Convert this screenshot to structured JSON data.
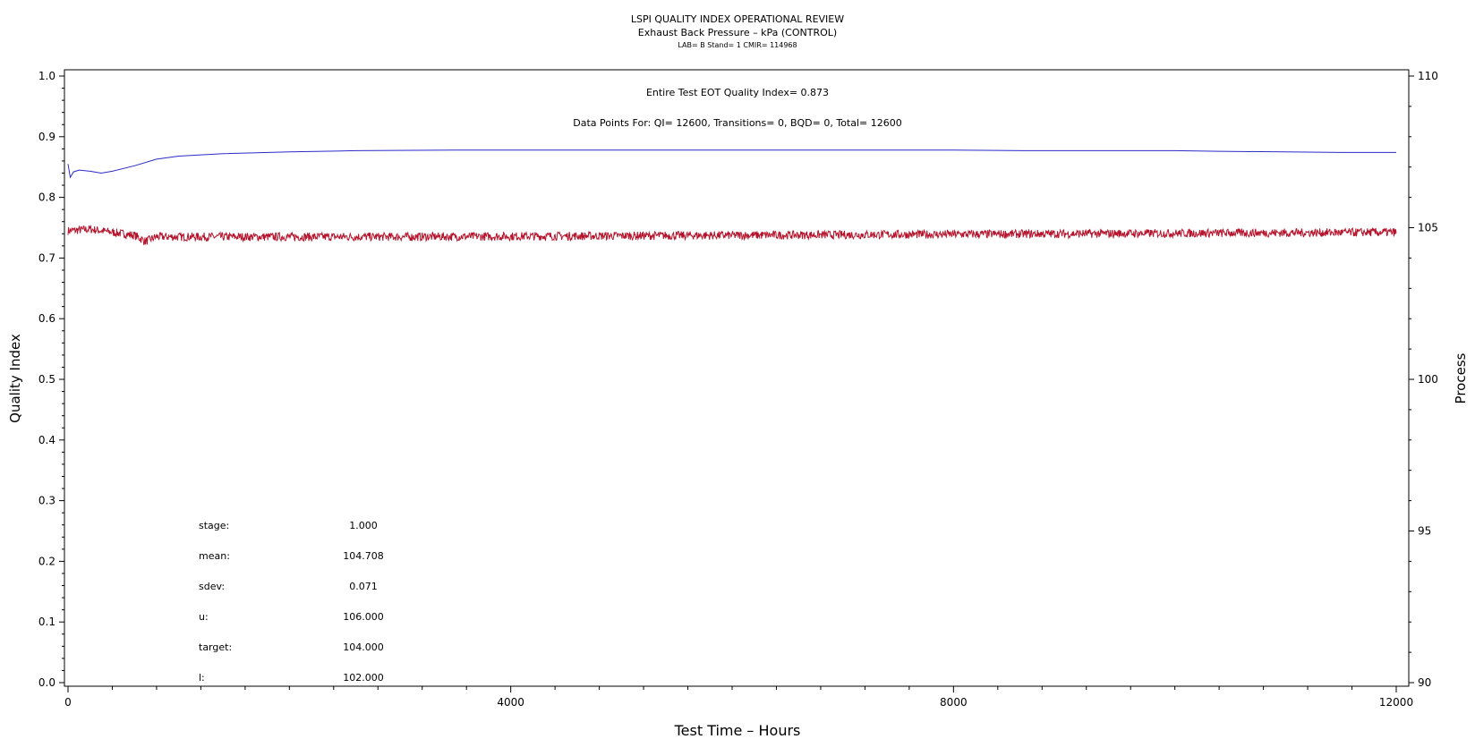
{
  "chart_data": {
    "type": "line",
    "title": "LSPI QUALITY INDEX OPERATIONAL REVIEW",
    "subtitle": "Exhaust Back Pressure – kPa (CONTROL)",
    "subtitle2": "LAB= B Stand= 1 CMIR= 114968",
    "xlabel": "Test Time – Hours",
    "ylabel": "Quality Index",
    "y2label": "Process",
    "xlim": [
      0,
      12000
    ],
    "ylim": [
      0,
      1.0
    ],
    "y2lim": [
      90,
      110
    ],
    "x_ticks": [
      0,
      4000,
      8000,
      12000
    ],
    "y_ticks": [
      0.0,
      0.1,
      0.2,
      0.3,
      0.4,
      0.5,
      0.6,
      0.7,
      0.8,
      0.9,
      1.0
    ],
    "y2_ticks": [
      90,
      95,
      100,
      105,
      110
    ],
    "annotations": [
      "Entire Test EOT Quality Index=   0.873",
      "Data Points For: QI= 12600, Transitions=     0, BQD=     0, Total= 12600"
    ],
    "stats": [
      {
        "label": "stage:",
        "value": "1.000"
      },
      {
        "label": "mean:",
        "value": "104.708"
      },
      {
        "label": "sdev:",
        "value": "0.071"
      },
      {
        "label": "u:",
        "value": "106.000"
      },
      {
        "label": "target:",
        "value": "104.000"
      },
      {
        "label": "l:",
        "value": "102.000"
      }
    ],
    "series": [
      {
        "axis": "left",
        "color": "#2b2bc8",
        "x": [
          0,
          20,
          50,
          100,
          200,
          300,
          400,
          600,
          800,
          1000,
          1400,
          2000,
          2600,
          3500,
          5000,
          8000,
          8700,
          10000,
          10400,
          11500,
          12000
        ],
        "y": [
          0.855,
          0.833,
          0.842,
          0.845,
          0.843,
          0.84,
          0.843,
          0.852,
          0.863,
          0.868,
          0.872,
          0.875,
          0.877,
          0.878,
          0.878,
          0.878,
          0.877,
          0.877,
          0.876,
          0.874,
          0.874
        ]
      },
      {
        "axis": "right",
        "color": "#b5142c",
        "x": [
          0,
          200,
          400,
          600,
          700,
          800,
          1500,
          3000,
          6000,
          9000,
          12000
        ],
        "y": [
          104.9,
          104.95,
          104.85,
          104.75,
          104.55,
          104.7,
          104.7,
          104.7,
          104.75,
          104.8,
          104.85
        ]
      }
    ]
  }
}
